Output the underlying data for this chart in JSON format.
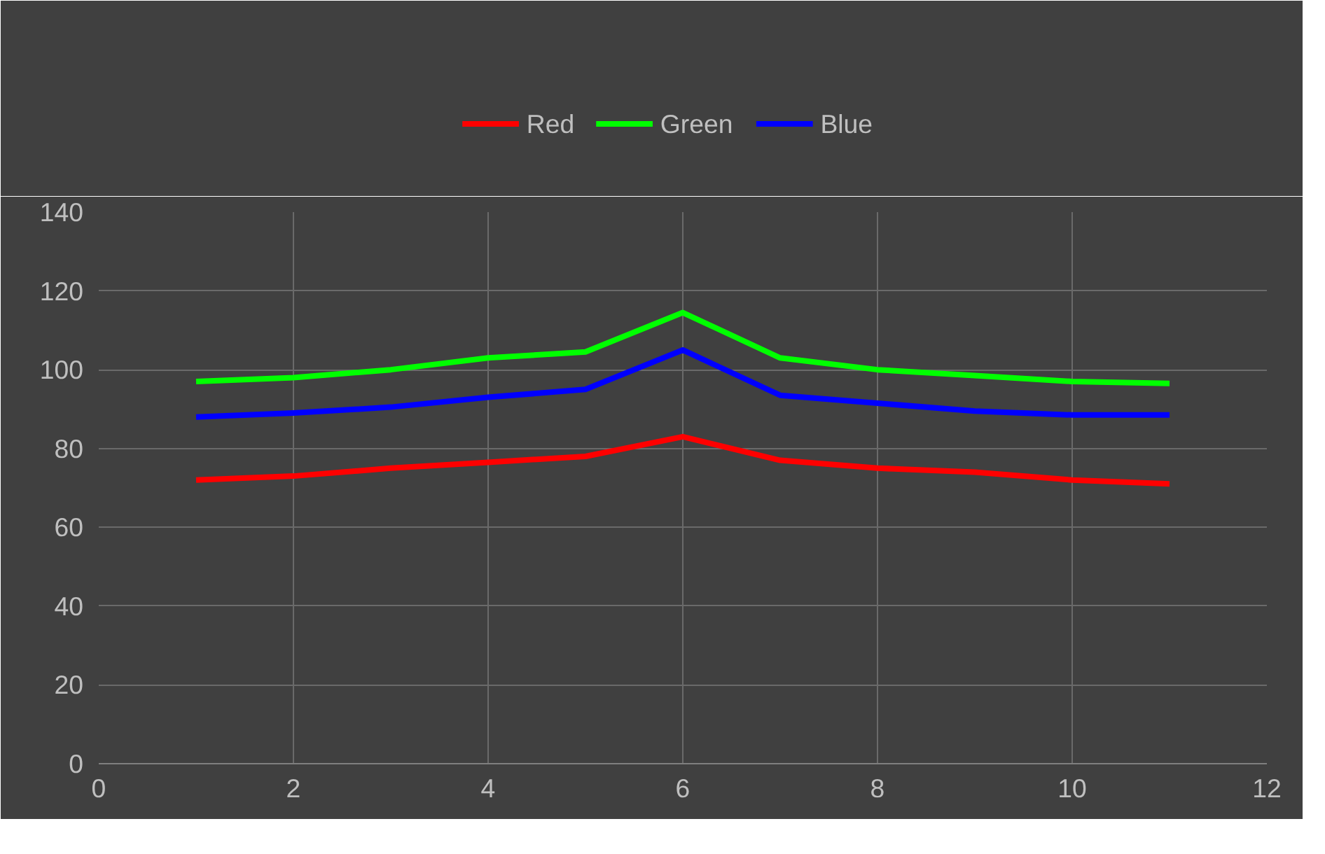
{
  "chart_data": {
    "type": "line",
    "x": [
      1,
      2,
      3,
      4,
      5,
      6,
      7,
      8,
      9,
      10,
      11
    ],
    "series": [
      {
        "name": "Red",
        "color": "#ff0000",
        "values": [
          72,
          73,
          75,
          76.5,
          78,
          83,
          77,
          75,
          74,
          72,
          71
        ]
      },
      {
        "name": "Green",
        "color": "#00ff00",
        "values": [
          97,
          98,
          100,
          103,
          104.5,
          114.5,
          103,
          100,
          98.5,
          97,
          96.5
        ]
      },
      {
        "name": "Blue",
        "color": "#0000ff",
        "values": [
          88,
          89,
          90.5,
          93,
          95,
          105,
          93.5,
          91.5,
          89.5,
          88.5,
          88.5
        ]
      }
    ],
    "xlim": [
      0,
      12
    ],
    "xticks": [
      0,
      2,
      4,
      6,
      8,
      10,
      12
    ],
    "ylim": [
      0,
      140
    ],
    "yticks": [
      0,
      20,
      40,
      60,
      80,
      100,
      120,
      140
    ],
    "grid": true,
    "legend": "top",
    "marker": "none",
    "line_style": "solid"
  }
}
